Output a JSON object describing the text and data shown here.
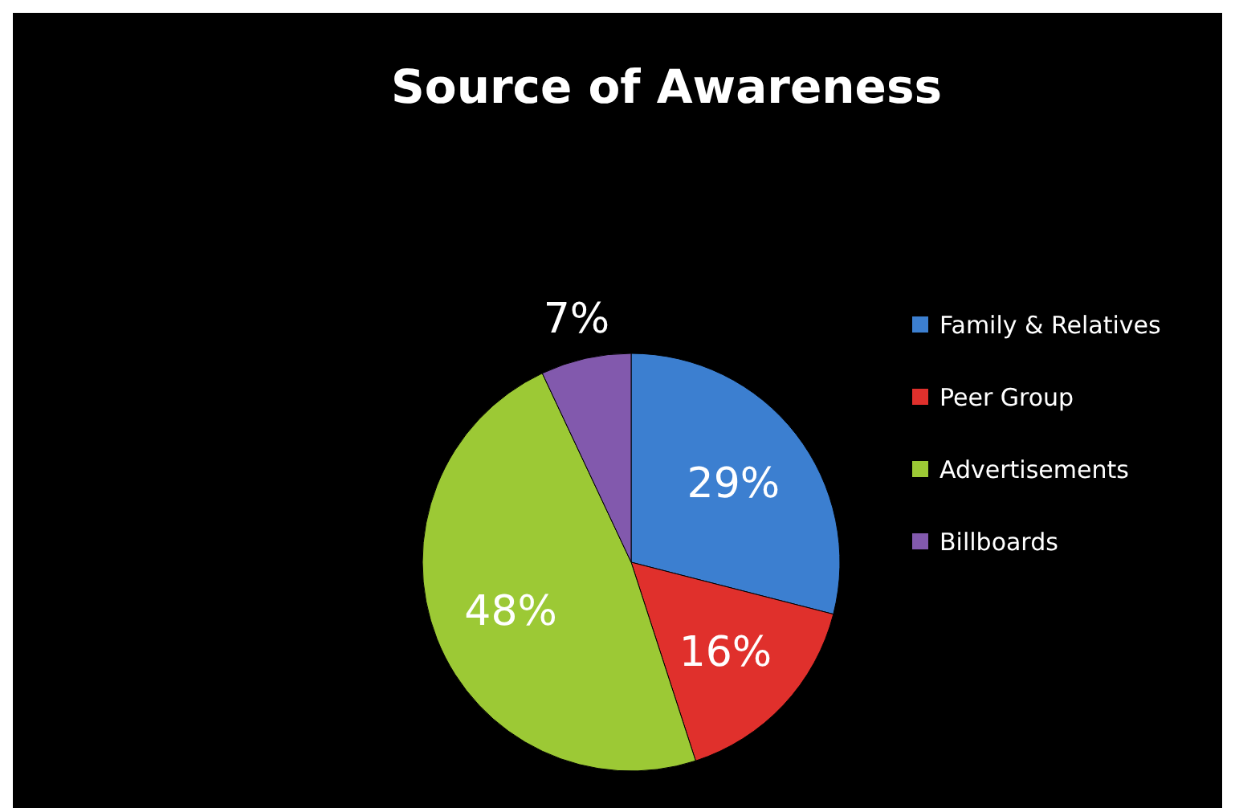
{
  "chart_data": {
    "type": "pie",
    "title": "Source of Awareness",
    "categories": [
      "Family & Relatives",
      "Peer Group",
      "Advertisements",
      "Billboards"
    ],
    "values": [
      29,
      16,
      48,
      7
    ],
    "colors": [
      "#3c7fd0",
      "#e0302c",
      "#9cc935",
      "#8259ad"
    ],
    "value_labels": [
      "29%",
      "16%",
      "48%",
      "7%"
    ],
    "legend": "right"
  }
}
